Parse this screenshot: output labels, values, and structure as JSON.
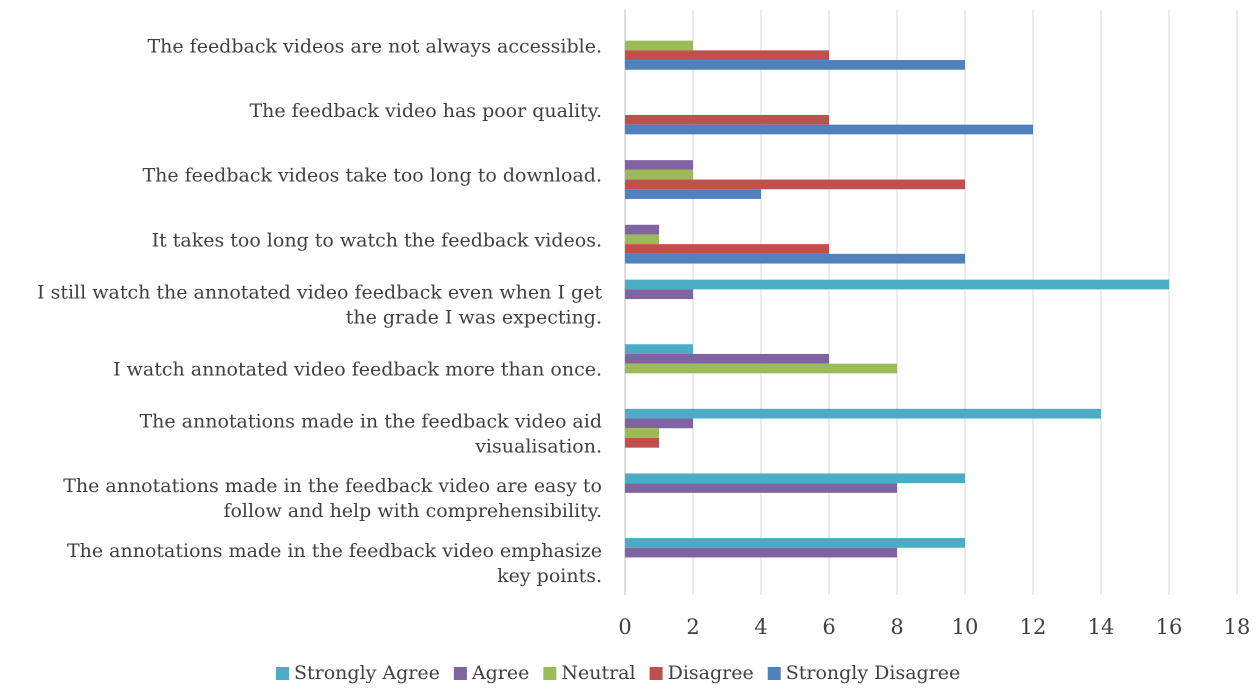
{
  "chart_data": {
    "type": "bar",
    "orientation": "horizontal",
    "categories": [
      "The feedback videos are not always accessible.",
      "The feedback video has poor quality.",
      "The feedback videos take too long to download.",
      "It takes too long to watch the feedback videos.",
      "I still watch the annotated video feedback even when I get the grade I was expecting.",
      "I watch annotated video feedback more than once.",
      "The annotations made in the feedback video aid visualisation.",
      "The annotations made in the feedback video are easy to follow and help with comprehensibility.",
      "The annotations made in the feedback video emphasize key points."
    ],
    "category_lines": [
      [
        "The feedback videos are not always accessible."
      ],
      [
        "The feedback video has poor quality."
      ],
      [
        "The feedback videos take too long to download."
      ],
      [
        "It takes too long to watch the feedback videos."
      ],
      [
        "I still watch the annotated video feedback even when I get",
        "the grade I was expecting."
      ],
      [
        "I watch annotated video feedback more than once."
      ],
      [
        "The annotations made in the feedback video aid",
        "visualisation."
      ],
      [
        "The annotations made in the feedback video are easy to",
        "follow and help with comprehensibility."
      ],
      [
        "The annotations made in the feedback video emphasize",
        "key points."
      ]
    ],
    "series": [
      {
        "name": "Strongly Agree",
        "color": "#4bacc6",
        "values": [
          0,
          0,
          0,
          0,
          16,
          2,
          14,
          10,
          10
        ]
      },
      {
        "name": "Agree",
        "color": "#8064a2",
        "values": [
          0,
          0,
          2,
          1,
          2,
          6,
          2,
          8,
          8
        ]
      },
      {
        "name": "Neutral",
        "color": "#9bbb59",
        "values": [
          2,
          0,
          2,
          1,
          0,
          8,
          1,
          0,
          0
        ]
      },
      {
        "name": "Disagree",
        "color": "#c0504d",
        "values": [
          6,
          6,
          10,
          6,
          0,
          0,
          1,
          0,
          0
        ]
      },
      {
        "name": "Strongly Disagree",
        "color": "#4f81bd",
        "values": [
          10,
          12,
          4,
          10,
          0,
          0,
          0,
          0,
          0
        ]
      }
    ],
    "xlim": [
      0,
      18
    ],
    "xticks": [
      "0",
      "2",
      "4",
      "6",
      "8",
      "10",
      "12",
      "14",
      "16",
      "18"
    ],
    "grid": true,
    "legend_position": "bottom",
    "title": "",
    "xlabel": "",
    "ylabel": ""
  }
}
